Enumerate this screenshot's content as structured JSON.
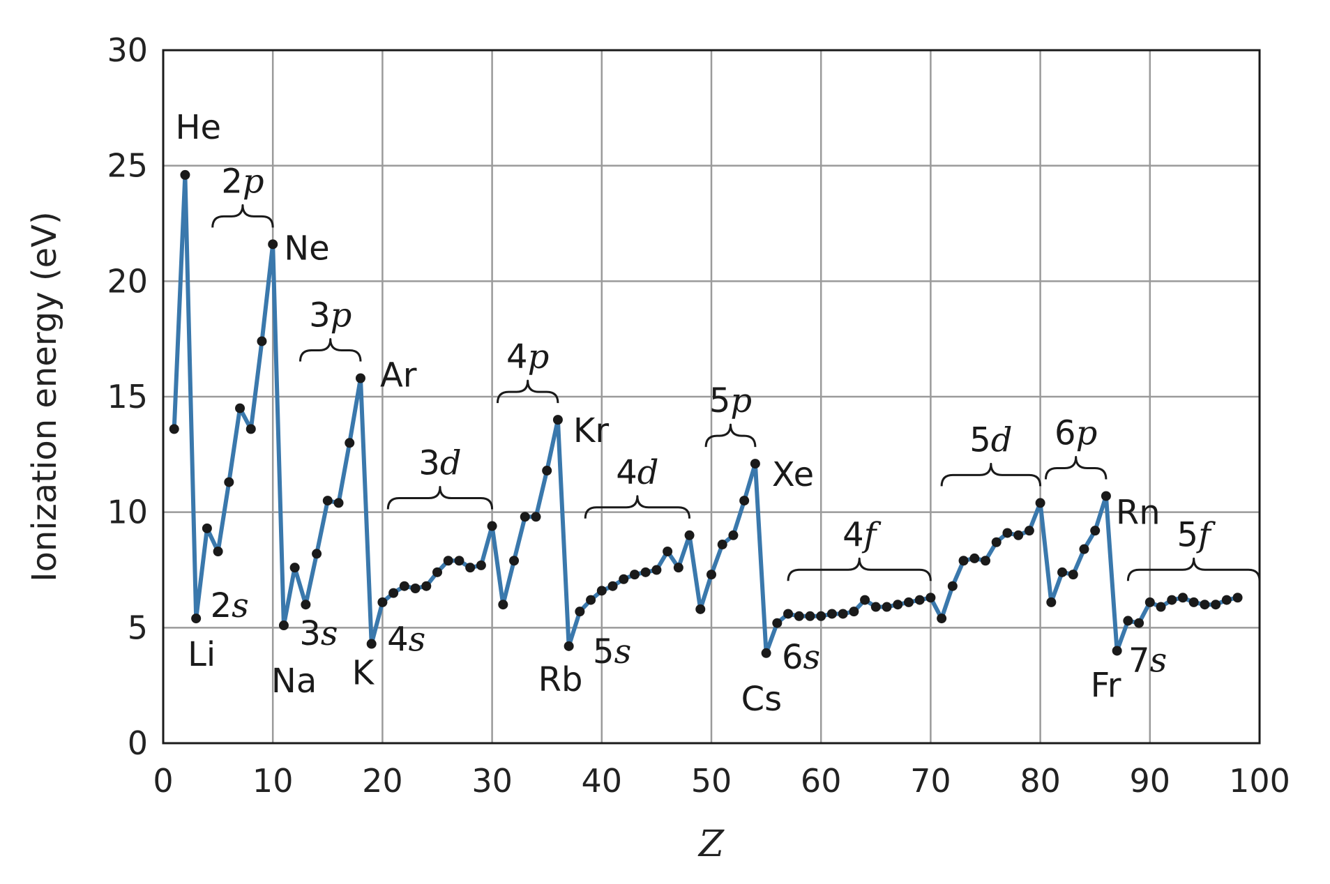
{
  "chart_data": {
    "type": "line",
    "xlabel": "Z",
    "ylabel": "Ionization energy (eV)",
    "xlim": [
      0,
      100
    ],
    "ylim": [
      0,
      30
    ],
    "x_ticks": [
      0,
      10,
      20,
      30,
      40,
      50,
      60,
      70,
      80,
      90,
      100
    ],
    "y_ticks": [
      0,
      5,
      10,
      15,
      20,
      25,
      30
    ],
    "grid": true,
    "series_color": "#3a78ac",
    "marker_color": "#1a1a1a",
    "x": [
      1,
      2,
      3,
      4,
      5,
      6,
      7,
      8,
      9,
      10,
      11,
      12,
      13,
      14,
      15,
      16,
      17,
      18,
      19,
      20,
      21,
      22,
      23,
      24,
      25,
      26,
      27,
      28,
      29,
      30,
      31,
      32,
      33,
      34,
      35,
      36,
      37,
      38,
      39,
      40,
      41,
      42,
      43,
      44,
      45,
      46,
      47,
      48,
      49,
      50,
      51,
      52,
      53,
      54,
      55,
      56,
      57,
      58,
      59,
      60,
      61,
      62,
      63,
      64,
      65,
      66,
      67,
      68,
      69,
      70,
      71,
      72,
      73,
      74,
      75,
      76,
      77,
      78,
      79,
      80,
      81,
      82,
      83,
      84,
      85,
      86,
      87,
      88,
      89,
      90,
      91,
      92,
      93,
      94,
      95,
      96,
      97,
      98
    ],
    "y": [
      13.6,
      24.6,
      5.4,
      9.3,
      8.3,
      11.3,
      14.5,
      13.6,
      17.4,
      21.6,
      5.1,
      7.6,
      6.0,
      8.2,
      10.5,
      10.4,
      13.0,
      15.8,
      4.3,
      6.1,
      6.5,
      6.8,
      6.7,
      6.8,
      7.4,
      7.9,
      7.9,
      7.6,
      7.7,
      9.4,
      6.0,
      7.9,
      9.8,
      9.8,
      11.8,
      14.0,
      4.2,
      5.7,
      6.2,
      6.6,
      6.8,
      7.1,
      7.3,
      7.4,
      7.5,
      8.3,
      7.6,
      9.0,
      5.8,
      7.3,
      8.6,
      9.0,
      10.5,
      12.1,
      3.9,
      5.2,
      5.6,
      5.5,
      5.5,
      5.5,
      5.6,
      5.6,
      5.7,
      6.2,
      5.9,
      5.9,
      6.0,
      6.1,
      6.2,
      6.3,
      5.4,
      6.8,
      7.9,
      8.0,
      7.9,
      8.7,
      9.1,
      9.0,
      9.2,
      10.4,
      6.1,
      7.4,
      7.3,
      8.4,
      9.2,
      10.7,
      4.0,
      5.3,
      5.2,
      6.1,
      5.9,
      6.2,
      6.3,
      6.1,
      6.0,
      6.0,
      6.2,
      6.3
    ],
    "element_labels": [
      {
        "text": "He",
        "z": 2
      },
      {
        "text": "Ne",
        "z": 10
      },
      {
        "text": "Ar",
        "z": 18
      },
      {
        "text": "Kr",
        "z": 36
      },
      {
        "text": "Xe",
        "z": 54
      },
      {
        "text": "Rn",
        "z": 86
      },
      {
        "text": "Li",
        "z": 3
      },
      {
        "text": "Na",
        "z": 11
      },
      {
        "text": "K",
        "z": 19
      },
      {
        "text": "Rb",
        "z": 37
      },
      {
        "text": "Cs",
        "z": 55
      },
      {
        "text": "Fr",
        "z": 87
      }
    ],
    "shell_labels": [
      {
        "num": "2",
        "letter": "s",
        "z": 3
      },
      {
        "num": "3",
        "letter": "s",
        "z": 11
      },
      {
        "num": "4",
        "letter": "s",
        "z": 19
      },
      {
        "num": "5",
        "letter": "s",
        "z": 37
      },
      {
        "num": "6",
        "letter": "s",
        "z": 55
      },
      {
        "num": "7",
        "letter": "s",
        "z": 87
      }
    ],
    "subshell_braces": [
      {
        "num": "2",
        "letter": "p",
        "z_start": 4.5,
        "z_end": 10
      },
      {
        "num": "3",
        "letter": "p",
        "z_start": 12.5,
        "z_end": 18
      },
      {
        "num": "3",
        "letter": "d",
        "z_start": 20.5,
        "z_end": 30
      },
      {
        "num": "4",
        "letter": "p",
        "z_start": 30.5,
        "z_end": 36
      },
      {
        "num": "4",
        "letter": "d",
        "z_start": 38.5,
        "z_end": 48
      },
      {
        "num": "5",
        "letter": "p",
        "z_start": 49.5,
        "z_end": 54
      },
      {
        "num": "4",
        "letter": "f",
        "z_start": 57,
        "z_end": 70
      },
      {
        "num": "5",
        "letter": "d",
        "z_start": 71,
        "z_end": 80
      },
      {
        "num": "6",
        "letter": "p",
        "z_start": 80.5,
        "z_end": 86
      },
      {
        "num": "5",
        "letter": "f",
        "z_start": 88,
        "z_end": 100
      }
    ]
  }
}
